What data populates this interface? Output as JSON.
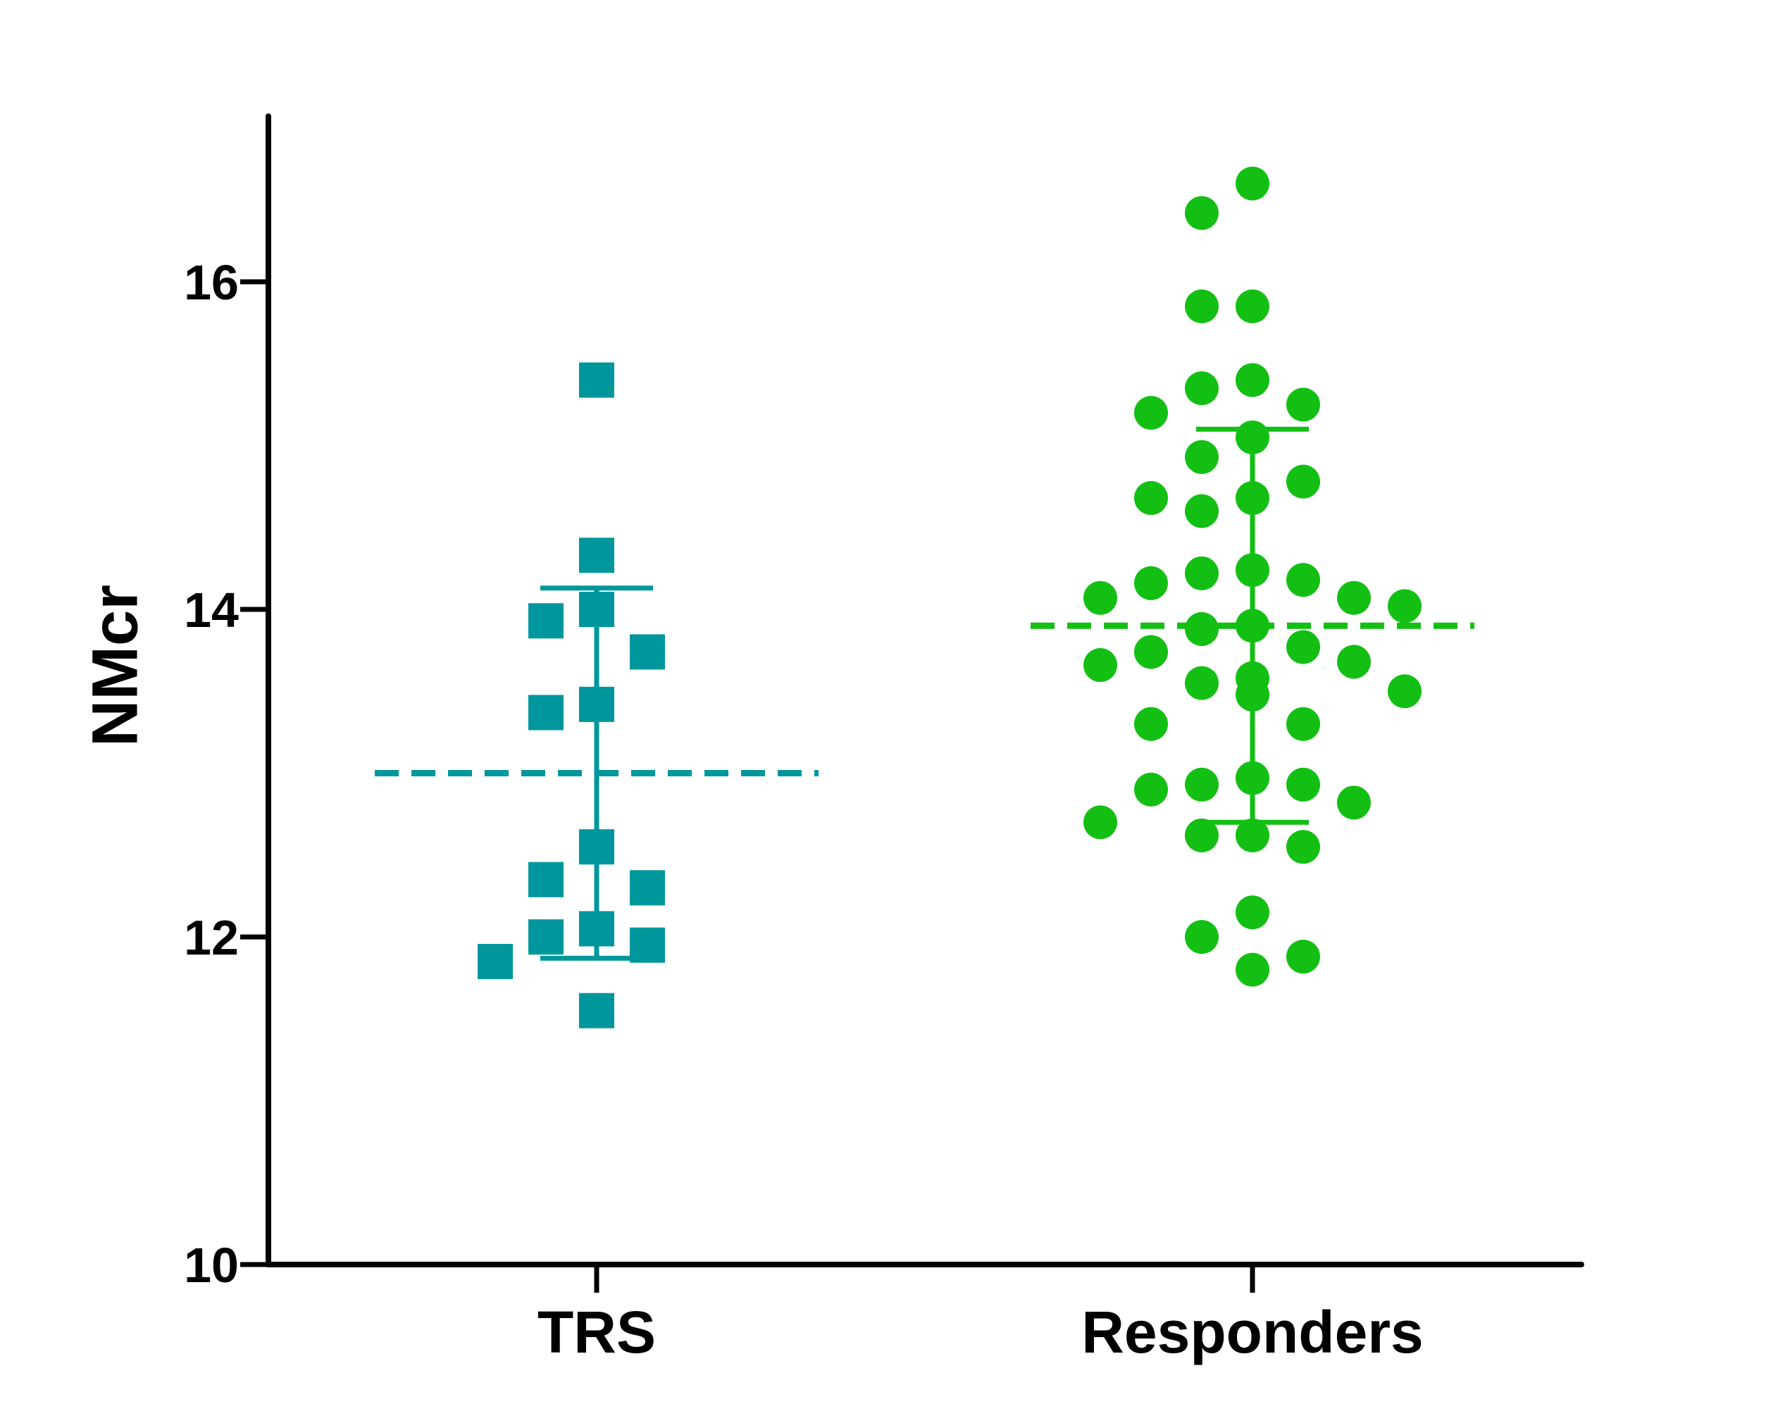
{
  "chart_data": {
    "type": "scatter",
    "title": "",
    "ylabel": "NMcr",
    "xlabel": "",
    "ylim": [
      10,
      17
    ],
    "yticks": [
      10,
      12,
      14,
      16
    ],
    "ytick_labels": [
      "10",
      "12",
      "14",
      "16"
    ],
    "categories": [
      "TRS",
      "Responders"
    ],
    "grid": false,
    "series": [
      {
        "category": "TRS",
        "marker": "square",
        "color": "#00979c",
        "mean": 13.0,
        "sd_upper": 14.13,
        "sd_lower": 11.87,
        "points": [
          15.4,
          14.33,
          14.0,
          13.93,
          13.74,
          13.42,
          13.37,
          12.55,
          12.35,
          12.3,
          12.05,
          12.0,
          11.95,
          11.85,
          11.55
        ]
      },
      {
        "category": "Responders",
        "marker": "circle",
        "color": "#13bf13",
        "mean": 13.9,
        "sd_upper": 15.1,
        "sd_lower": 12.7,
        "points": [
          16.6,
          16.42,
          15.85,
          15.85,
          15.4,
          15.35,
          15.25,
          15.2,
          15.05,
          14.93,
          14.78,
          14.68,
          14.68,
          14.6,
          14.24,
          14.22,
          14.18,
          14.16,
          14.07,
          14.07,
          14.02,
          13.9,
          13.88,
          13.77,
          13.74,
          13.68,
          13.66,
          13.58,
          13.55,
          13.5,
          13.48,
          13.3,
          13.3,
          12.97,
          12.93,
          12.93,
          12.9,
          12.82,
          12.7,
          12.62,
          12.62,
          12.55,
          12.15,
          12.0,
          11.88,
          11.8
        ]
      }
    ]
  }
}
